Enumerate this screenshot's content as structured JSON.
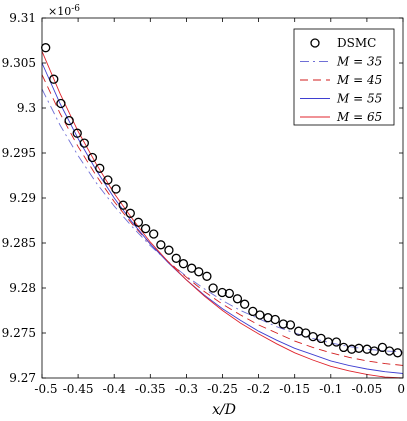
{
  "chart_data": {
    "type": "line",
    "title": "",
    "xlabel": "x/D",
    "ylabel": "",
    "y_multiplier": "×10",
    "y_multiplier_exp": "-6",
    "xlim": [
      -0.5,
      0
    ],
    "ylim": [
      9.27,
      9.31
    ],
    "x_ticks": [
      -0.5,
      -0.45,
      -0.4,
      -0.35,
      -0.3,
      -0.25,
      -0.2,
      -0.15,
      -0.1,
      -0.05,
      0
    ],
    "x_tick_labels": [
      "-0.5",
      "-0.45",
      "-0.4",
      "-0.35",
      "-0.3",
      "-0.25",
      "-0.2",
      "-0.15",
      "-0.1",
      "-0.05",
      "0"
    ],
    "y_ticks": [
      9.27,
      9.275,
      9.28,
      9.285,
      9.29,
      9.295,
      9.3,
      9.305,
      9.31
    ],
    "y_tick_labels": [
      "9.27",
      "9.275",
      "9.28",
      "9.285",
      "9.29",
      "9.295",
      "9.3",
      "9.305",
      "9.31"
    ],
    "grid": false,
    "legend_position": "top-right",
    "series": [
      {
        "name": "DSMC",
        "style": "markers",
        "marker": "open-circle",
        "color": "#000000",
        "x": [
          -0.4949,
          -0.4837,
          -0.4738,
          -0.4624,
          -0.4512,
          -0.4414,
          -0.4302,
          -0.42,
          -0.4088,
          -0.3975,
          -0.3876,
          -0.3777,
          -0.3665,
          -0.3565,
          -0.3453,
          -0.3354,
          -0.3242,
          -0.3141,
          -0.3041,
          -0.2927,
          -0.2829,
          -0.2716,
          -0.263,
          -0.2504,
          -0.2405,
          -0.2293,
          -0.2193,
          -0.208,
          -0.1982,
          -0.187,
          -0.177,
          -0.1658,
          -0.1559,
          -0.1445,
          -0.1347,
          -0.1246,
          -0.1135,
          -0.1035,
          -0.0923,
          -0.0822,
          -0.071,
          -0.0611,
          -0.0498,
          -0.0398,
          -0.0285,
          -0.0187,
          -0.0074
        ],
        "y": [
          9.3067,
          9.3032,
          9.3005,
          9.2986,
          9.2972,
          9.2961,
          9.2945,
          9.2933,
          9.292,
          9.291,
          9.2892,
          9.2883,
          9.2873,
          9.2866,
          9.286,
          9.2848,
          9.2842,
          9.2833,
          9.2827,
          9.2822,
          9.2818,
          9.2813,
          9.28,
          9.2795,
          9.2794,
          9.2788,
          9.2782,
          9.2774,
          9.277,
          9.2767,
          9.2765,
          9.276,
          9.2759,
          9.2752,
          9.275,
          9.2746,
          9.2744,
          9.274,
          9.274,
          9.2734,
          9.2732,
          9.2733,
          9.2732,
          9.273,
          9.2734,
          9.273,
          9.2728
        ]
      },
      {
        "name": "M = 35",
        "style": "dash-dot",
        "color": "#6f6fd6",
        "x": [
          -0.5,
          -0.475,
          -0.45,
          -0.425,
          -0.4,
          -0.375,
          -0.35,
          -0.325,
          -0.3,
          -0.275,
          -0.25,
          -0.225,
          -0.2,
          -0.175,
          -0.15,
          -0.125,
          -0.1,
          -0.075,
          -0.05,
          -0.025,
          0
        ],
        "y": [
          9.3021,
          9.2981,
          9.2947,
          9.2917,
          9.2891,
          9.2868,
          9.2847,
          9.2829,
          9.2813,
          9.2799,
          9.2786,
          9.2775,
          9.2766,
          9.2757,
          9.275,
          9.2744,
          9.2739,
          9.2735,
          9.2732,
          9.273,
          9.2729
        ]
      },
      {
        "name": "M = 45",
        "style": "dashed",
        "color": "#d21e1e",
        "x": [
          -0.5,
          -0.475,
          -0.45,
          -0.425,
          -0.4,
          -0.375,
          -0.35,
          -0.325,
          -0.3,
          -0.275,
          -0.25,
          -0.225,
          -0.2,
          -0.175,
          -0.15,
          -0.125,
          -0.1,
          -0.075,
          -0.05,
          -0.025,
          0
        ],
        "y": [
          9.3037,
          9.2994,
          9.2957,
          9.2925,
          9.2896,
          9.2871,
          9.2849,
          9.2829,
          9.2812,
          9.2796,
          9.2782,
          9.277,
          9.2759,
          9.275,
          9.2741,
          9.2734,
          9.2728,
          9.2723,
          9.2719,
          9.2716,
          9.2714
        ]
      },
      {
        "name": "M = 55",
        "style": "solid",
        "color": "#3f3fd1",
        "x": [
          -0.5,
          -0.475,
          -0.45,
          -0.425,
          -0.4,
          -0.375,
          -0.35,
          -0.325,
          -0.3,
          -0.275,
          -0.25,
          -0.225,
          -0.2,
          -0.175,
          -0.15,
          -0.125,
          -0.1,
          -0.075,
          -0.05,
          -0.025,
          0
        ],
        "y": [
          9.305,
          9.3005,
          9.2966,
          9.2931,
          9.29,
          9.2873,
          9.2849,
          9.2828,
          9.2809,
          9.2792,
          9.2777,
          9.2764,
          9.2752,
          9.2742,
          9.2733,
          9.2726,
          9.2719,
          9.2714,
          9.271,
          9.2707,
          9.2705
        ]
      },
      {
        "name": "M = 65",
        "style": "solid",
        "color": "#e0242c",
        "x": [
          -0.5,
          -0.475,
          -0.45,
          -0.425,
          -0.4,
          -0.375,
          -0.35,
          -0.325,
          -0.3,
          -0.275,
          -0.25,
          -0.225,
          -0.2,
          -0.175,
          -0.15,
          -0.125,
          -0.1,
          -0.075,
          -0.05,
          -0.025,
          0
        ],
        "y": [
          9.3063,
          9.3016,
          9.2974,
          9.2938,
          9.2905,
          9.2877,
          9.2851,
          9.2829,
          9.2809,
          9.2791,
          9.2775,
          9.2761,
          9.2749,
          9.2738,
          9.2728,
          9.272,
          9.2713,
          9.2708,
          9.2704,
          9.2701,
          9.27
        ]
      }
    ]
  }
}
